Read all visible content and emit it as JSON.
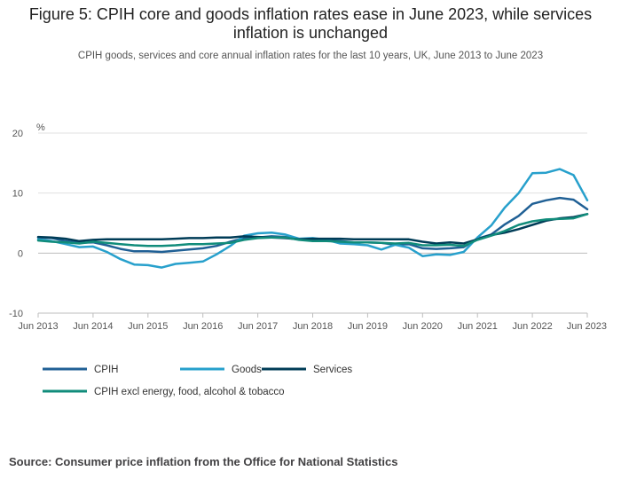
{
  "title": "Figure 5: CPIH core and goods inflation rates ease in June 2023, while services inflation is unchanged",
  "subtitle": "CPIH goods, services and core annual inflation rates for the last 10 years, UK, June 2013 to June 2023",
  "source": "Source: Consumer price inflation from the Office for National Statistics",
  "chart_data": {
    "type": "line",
    "ylabel": "%",
    "ylim": [
      -10,
      20
    ],
    "yticks": [
      "20",
      "10",
      "0",
      "-10"
    ],
    "xlim": [
      "2013-06",
      "2023-06"
    ],
    "xticks": [
      "Jun 2013",
      "Jun 2014",
      "Jun 2015",
      "Jun 2016",
      "Jun 2017",
      "Jun 2018",
      "Jun 2019",
      "Jun 2020",
      "Jun 2021",
      "Jun 2022",
      "Jun 2023"
    ],
    "grid": "horizontal",
    "legend_position": "bottom",
    "series": [
      {
        "name": "CPIH",
        "color": "#206095",
        "points": [
          [
            "2013-06",
            2.6
          ],
          [
            "2013-09",
            2.5
          ],
          [
            "2013-12",
            2.0
          ],
          [
            "2014-03",
            1.7
          ],
          [
            "2014-06",
            1.8
          ],
          [
            "2014-09",
            1.3
          ],
          [
            "2014-12",
            0.7
          ],
          [
            "2015-03",
            0.3
          ],
          [
            "2015-06",
            0.3
          ],
          [
            "2015-09",
            0.2
          ],
          [
            "2015-12",
            0.4
          ],
          [
            "2016-03",
            0.6
          ],
          [
            "2016-06",
            0.8
          ],
          [
            "2016-09",
            1.2
          ],
          [
            "2016-12",
            1.9
          ],
          [
            "2017-03",
            2.5
          ],
          [
            "2017-06",
            2.6
          ],
          [
            "2017-09",
            2.8
          ],
          [
            "2017-12",
            2.7
          ],
          [
            "2018-03",
            2.3
          ],
          [
            "2018-06",
            2.3
          ],
          [
            "2018-09",
            2.2
          ],
          [
            "2018-12",
            2.0
          ],
          [
            "2019-03",
            1.8
          ],
          [
            "2019-06",
            1.8
          ],
          [
            "2019-09",
            1.7
          ],
          [
            "2019-12",
            1.4
          ],
          [
            "2020-03",
            1.5
          ],
          [
            "2020-06",
            0.8
          ],
          [
            "2020-09",
            0.7
          ],
          [
            "2020-12",
            0.8
          ],
          [
            "2021-03",
            1.0
          ],
          [
            "2021-06",
            2.4
          ],
          [
            "2021-09",
            3.1
          ],
          [
            "2021-12",
            4.8
          ],
          [
            "2022-03",
            6.2
          ],
          [
            "2022-06",
            8.2
          ],
          [
            "2022-09",
            8.8
          ],
          [
            "2022-12",
            9.2
          ],
          [
            "2023-03",
            8.9
          ],
          [
            "2023-06",
            7.3
          ]
        ]
      },
      {
        "name": "Goods",
        "color": "#27a0cc",
        "points": [
          [
            "2013-06",
            2.3
          ],
          [
            "2013-09",
            2.0
          ],
          [
            "2013-12",
            1.5
          ],
          [
            "2014-03",
            1.0
          ],
          [
            "2014-06",
            1.1
          ],
          [
            "2014-09",
            0.2
          ],
          [
            "2014-12",
            -1.0
          ],
          [
            "2015-03",
            -1.9
          ],
          [
            "2015-06",
            -2.0
          ],
          [
            "2015-09",
            -2.4
          ],
          [
            "2015-12",
            -1.8
          ],
          [
            "2016-03",
            -1.6
          ],
          [
            "2016-06",
            -1.4
          ],
          [
            "2016-09",
            -0.2
          ],
          [
            "2016-12",
            1.2
          ],
          [
            "2017-03",
            2.9
          ],
          [
            "2017-06",
            3.3
          ],
          [
            "2017-09",
            3.4
          ],
          [
            "2017-12",
            3.1
          ],
          [
            "2018-03",
            2.4
          ],
          [
            "2018-06",
            2.5
          ],
          [
            "2018-09",
            2.2
          ],
          [
            "2018-12",
            1.6
          ],
          [
            "2019-03",
            1.5
          ],
          [
            "2019-06",
            1.3
          ],
          [
            "2019-09",
            0.6
          ],
          [
            "2019-12",
            1.4
          ],
          [
            "2020-03",
            0.9
          ],
          [
            "2020-06",
            -0.5
          ],
          [
            "2020-09",
            -0.2
          ],
          [
            "2020-12",
            -0.3
          ],
          [
            "2021-03",
            0.2
          ],
          [
            "2021-06",
            2.6
          ],
          [
            "2021-09",
            4.6
          ],
          [
            "2021-12",
            7.6
          ],
          [
            "2022-03",
            10.0
          ],
          [
            "2022-06",
            13.3
          ],
          [
            "2022-09",
            13.4
          ],
          [
            "2022-12",
            14.0
          ],
          [
            "2023-03",
            13.0
          ],
          [
            "2023-06",
            8.8
          ]
        ]
      },
      {
        "name": "Services",
        "color": "#003c57",
        "points": [
          [
            "2013-06",
            2.7
          ],
          [
            "2013-09",
            2.6
          ],
          [
            "2013-12",
            2.4
          ],
          [
            "2014-03",
            2.0
          ],
          [
            "2014-06",
            2.2
          ],
          [
            "2014-09",
            2.3
          ],
          [
            "2014-12",
            2.3
          ],
          [
            "2015-03",
            2.3
          ],
          [
            "2015-06",
            2.3
          ],
          [
            "2015-09",
            2.3
          ],
          [
            "2015-12",
            2.4
          ],
          [
            "2016-03",
            2.5
          ],
          [
            "2016-06",
            2.5
          ],
          [
            "2016-09",
            2.6
          ],
          [
            "2016-12",
            2.6
          ],
          [
            "2017-03",
            2.8
          ],
          [
            "2017-06",
            2.7
          ],
          [
            "2017-09",
            2.6
          ],
          [
            "2017-12",
            2.5
          ],
          [
            "2018-03",
            2.3
          ],
          [
            "2018-06",
            2.4
          ],
          [
            "2018-09",
            2.4
          ],
          [
            "2018-12",
            2.4
          ],
          [
            "2019-03",
            2.3
          ],
          [
            "2019-06",
            2.3
          ],
          [
            "2019-09",
            2.3
          ],
          [
            "2019-12",
            2.3
          ],
          [
            "2020-03",
            2.3
          ],
          [
            "2020-06",
            1.9
          ],
          [
            "2020-09",
            1.6
          ],
          [
            "2020-12",
            1.8
          ],
          [
            "2021-03",
            1.6
          ],
          [
            "2021-06",
            2.3
          ],
          [
            "2021-09",
            3.0
          ],
          [
            "2021-12",
            3.4
          ],
          [
            "2022-03",
            4.0
          ],
          [
            "2022-06",
            4.7
          ],
          [
            "2022-09",
            5.4
          ],
          [
            "2022-12",
            5.8
          ],
          [
            "2023-03",
            6.0
          ],
          [
            "2023-06",
            6.5
          ]
        ]
      },
      {
        "name": "CPIH excl energy, food, alcohol & tobacco",
        "color": "#118c7b",
        "points": [
          [
            "2013-06",
            2.1
          ],
          [
            "2013-09",
            1.9
          ],
          [
            "2013-12",
            1.8
          ],
          [
            "2014-03",
            1.6
          ],
          [
            "2014-06",
            1.9
          ],
          [
            "2014-09",
            1.7
          ],
          [
            "2014-12",
            1.5
          ],
          [
            "2015-03",
            1.3
          ],
          [
            "2015-06",
            1.2
          ],
          [
            "2015-09",
            1.2
          ],
          [
            "2015-12",
            1.3
          ],
          [
            "2016-03",
            1.5
          ],
          [
            "2016-06",
            1.5
          ],
          [
            "2016-09",
            1.6
          ],
          [
            "2016-12",
            1.7
          ],
          [
            "2017-03",
            2.2
          ],
          [
            "2017-06",
            2.5
          ],
          [
            "2017-09",
            2.6
          ],
          [
            "2017-12",
            2.6
          ],
          [
            "2018-03",
            2.2
          ],
          [
            "2018-06",
            2.0
          ],
          [
            "2018-09",
            2.0
          ],
          [
            "2018-12",
            1.9
          ],
          [
            "2019-03",
            1.8
          ],
          [
            "2019-06",
            1.8
          ],
          [
            "2019-09",
            1.7
          ],
          [
            "2019-12",
            1.6
          ],
          [
            "2020-03",
            1.7
          ],
          [
            "2020-06",
            1.3
          ],
          [
            "2020-09",
            1.3
          ],
          [
            "2020-12",
            1.4
          ],
          [
            "2021-03",
            1.2
          ],
          [
            "2021-06",
            2.2
          ],
          [
            "2021-09",
            2.9
          ],
          [
            "2021-12",
            3.7
          ],
          [
            "2022-03",
            4.7
          ],
          [
            "2022-06",
            5.3
          ],
          [
            "2022-09",
            5.6
          ],
          [
            "2022-12",
            5.7
          ],
          [
            "2023-03",
            5.8
          ],
          [
            "2023-06",
            6.5
          ]
        ]
      }
    ]
  }
}
